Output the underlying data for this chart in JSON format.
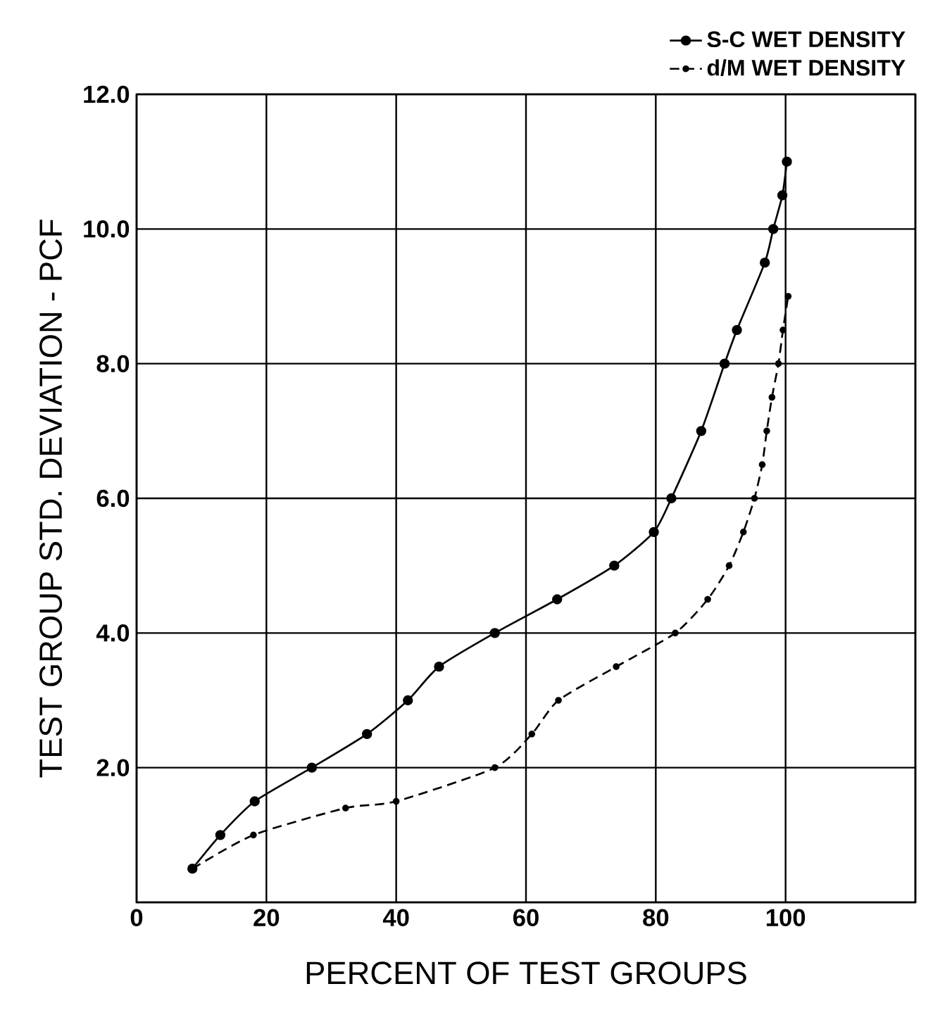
{
  "chart_data": {
    "type": "line",
    "xlabel": "PERCENT OF TEST GROUPS",
    "ylabel": "TEST GROUP STD. DEVIATION - PCF",
    "xlim": [
      0,
      120
    ],
    "ylim": [
      0,
      12
    ],
    "xticks": [
      0,
      20,
      40,
      60,
      80,
      100,
      {
        "value": 120,
        "label": null
      }
    ],
    "yticks": [
      {
        "value": 0,
        "label": null
      },
      {
        "value": 2,
        "label": "2.0"
      },
      {
        "value": 4,
        "label": "4.0"
      },
      {
        "value": 6,
        "label": "6.0"
      },
      {
        "value": 8,
        "label": "8.0"
      },
      {
        "value": 10,
        "label": "10.0"
      },
      {
        "value": 12,
        "label": "12.0"
      }
    ],
    "grid": true,
    "legend": "top right",
    "marker": "circle",
    "series": [
      {
        "name": "S-C WET DENSITY",
        "color": "#000000",
        "line_style": "solid",
        "x": [
          8.6,
          12.9,
          18.2,
          27,
          35.5,
          41.8,
          46.6,
          55.2,
          64.8,
          73.6,
          79.7,
          82.4,
          87,
          90.6,
          92.5,
          96.8,
          98.1,
          99.5,
          100.2
        ],
        "values": [
          0.5,
          1.0,
          1.5,
          2.0,
          2.5,
          3.0,
          3.5,
          4.0,
          4.5,
          5.0,
          5.5,
          6.0,
          7.0,
          8.0,
          8.5,
          9.5,
          10.0,
          10.5,
          11.0
        ]
      },
      {
        "name": "d/M WET DENSITY",
        "color": "#000000",
        "line_style": "dashed",
        "x": [
          8.6,
          18,
          32.2,
          40,
          55.2,
          60.9,
          65,
          73.9,
          83,
          88,
          91.3,
          93.5,
          95.2,
          96.4,
          97.1,
          97.9,
          98.9,
          99.6,
          100.4
        ],
        "values": [
          0.5,
          1.0,
          1.4,
          1.5,
          2.0,
          2.5,
          3.0,
          3.5,
          4.0,
          4.5,
          5.0,
          5.5,
          6.0,
          6.5,
          7.0,
          7.5,
          8.0,
          8.5,
          9.0
        ]
      }
    ]
  }
}
